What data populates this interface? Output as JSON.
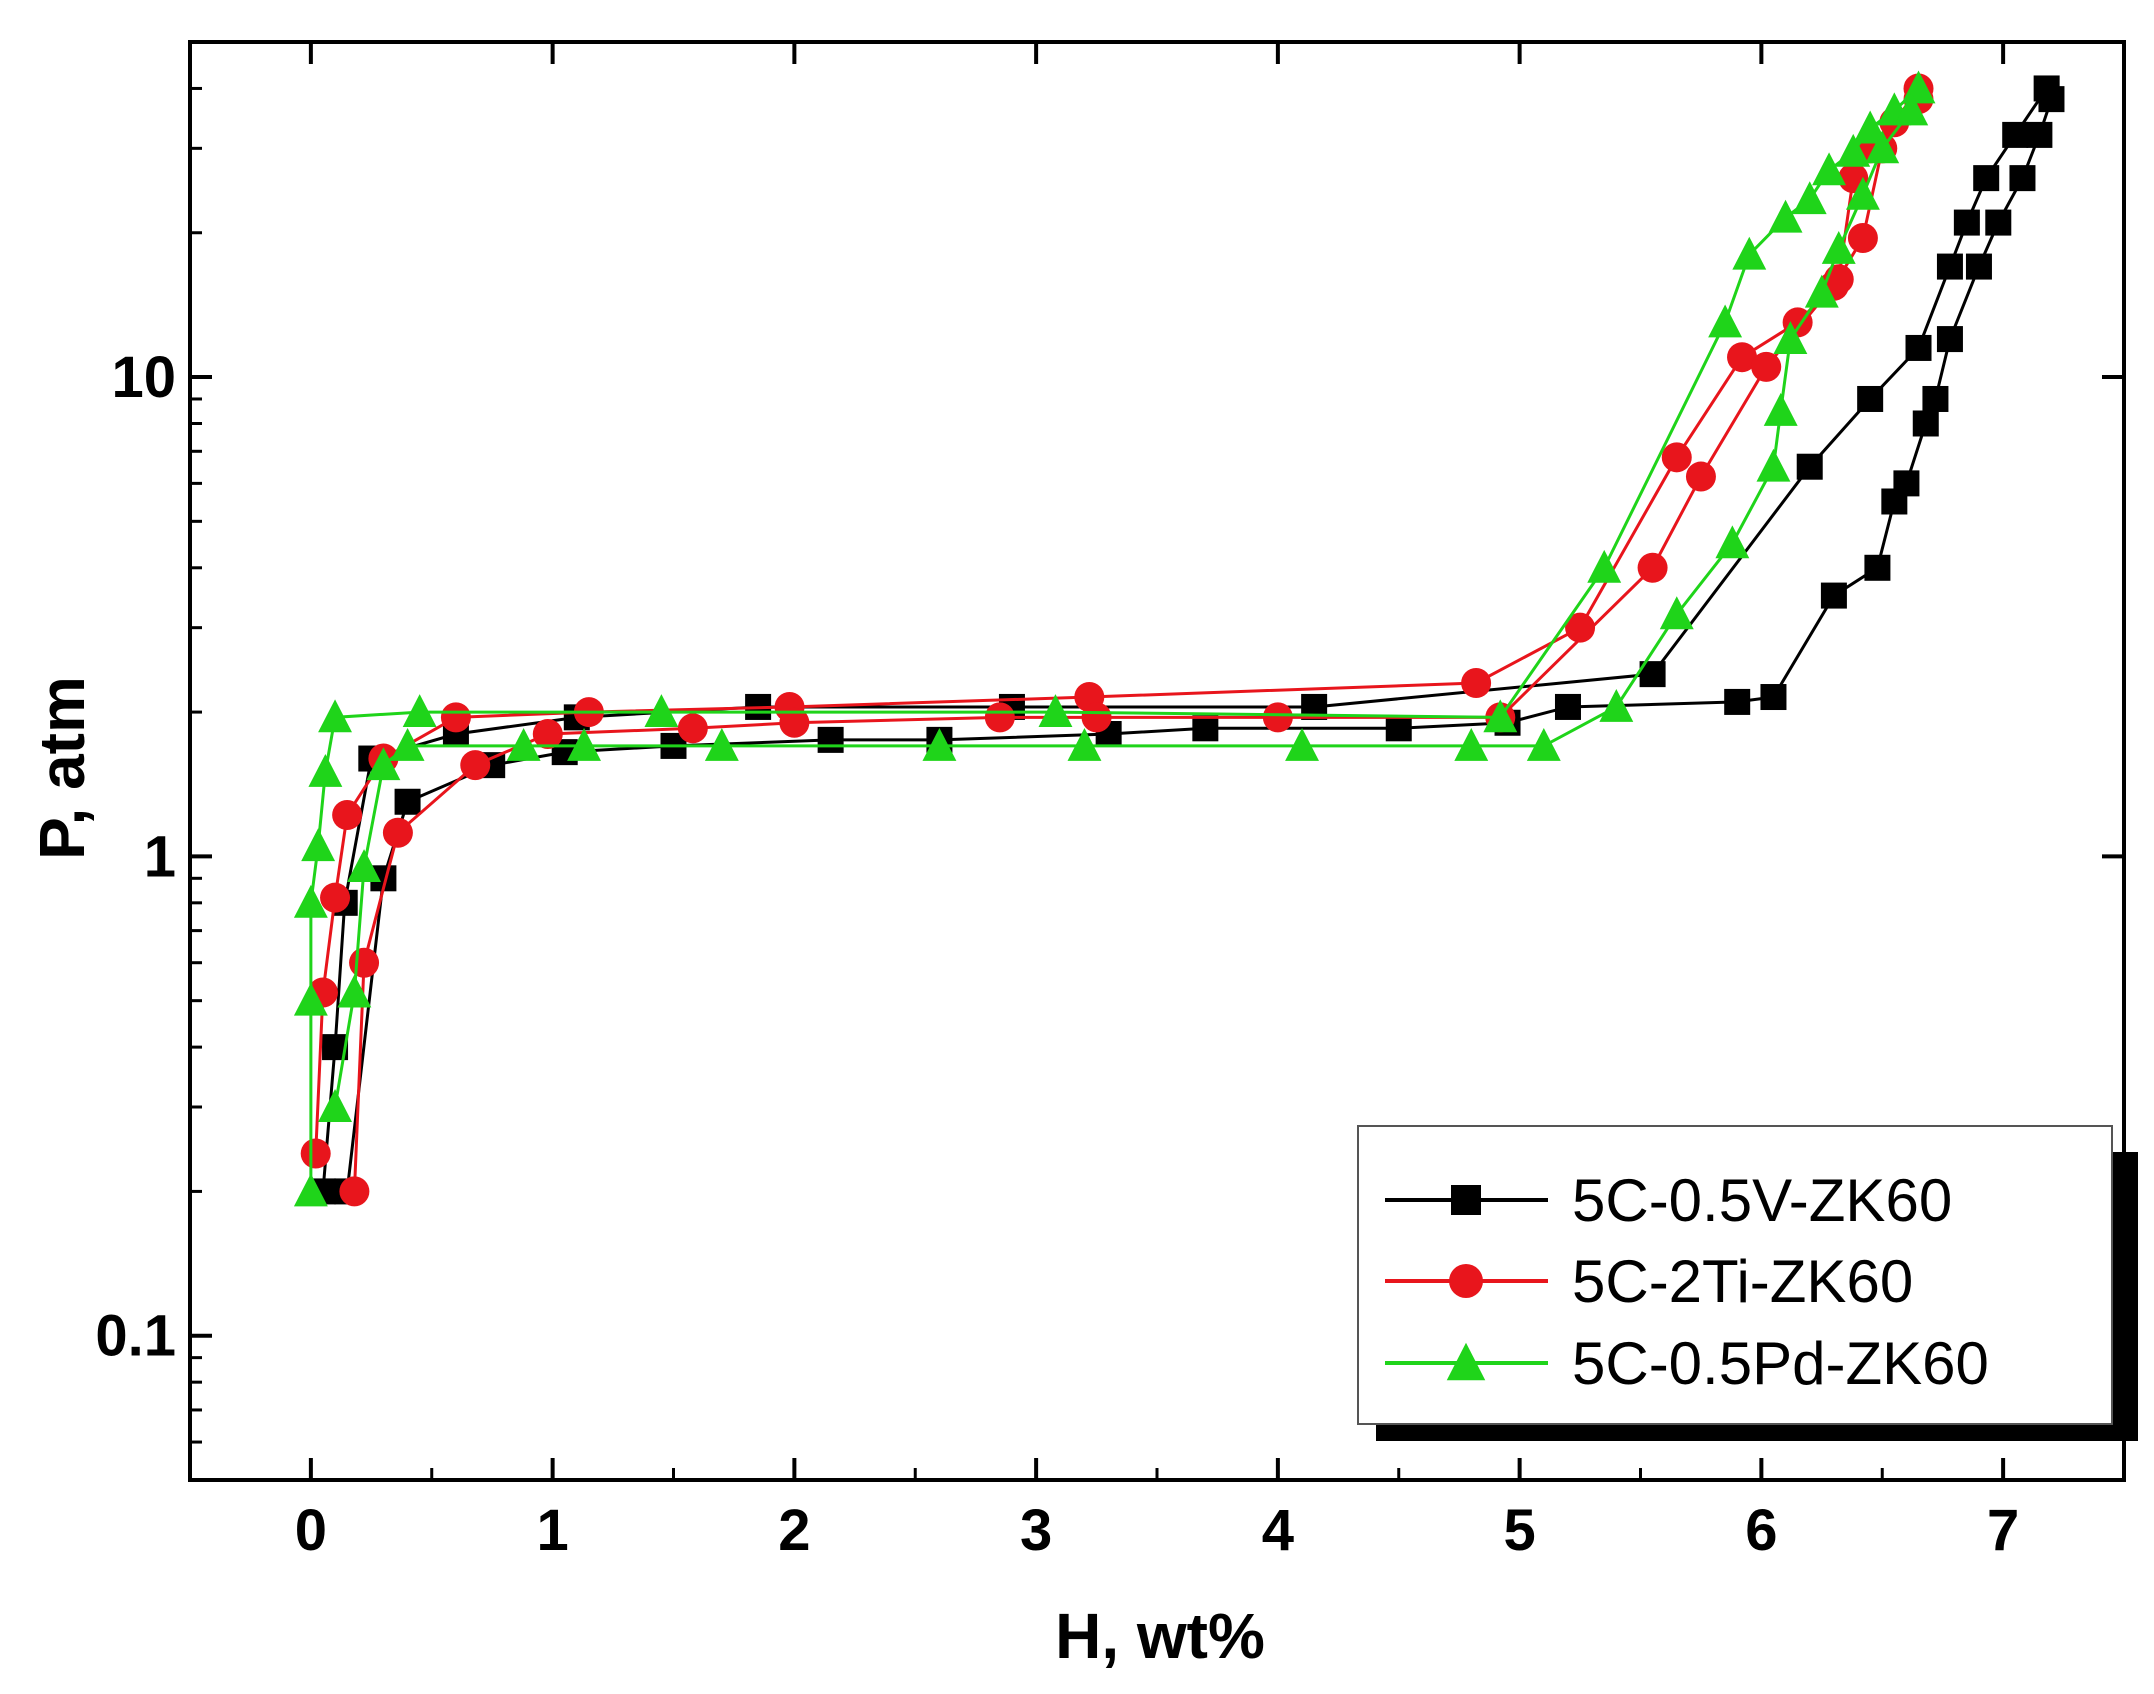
{
  "chart_data": {
    "type": "scatter",
    "title": "",
    "xlabel": "H, wt%",
    "ylabel": "P, atm",
    "xlim": [
      -0.5,
      7.5
    ],
    "ylim": [
      0.05,
      50
    ],
    "yscale": "log",
    "x_ticks": [
      "0",
      "1",
      "2",
      "3",
      "4",
      "5",
      "6",
      "7"
    ],
    "y_ticks": [
      "0.1",
      "1",
      "10"
    ],
    "grid": false,
    "legend": {
      "position": "bottom-right",
      "entries": [
        "5C-0.5V-ZK60",
        "5C-2Ti-ZK60",
        "5C-0.5Pd-ZK60"
      ]
    },
    "series": [
      {
        "name": "5C-0.5V-ZK60",
        "color": "#000000",
        "marker": "square",
        "absorption": [
          [
            0.05,
            0.2
          ],
          [
            0.1,
            0.4
          ],
          [
            0.14,
            0.8
          ],
          [
            0.25,
            1.6
          ],
          [
            0.6,
            1.8
          ],
          [
            1.1,
            1.95
          ],
          [
            1.85,
            2.05
          ],
          [
            2.9,
            2.05
          ],
          [
            4.15,
            2.05
          ],
          [
            5.55,
            2.4
          ],
          [
            6.2,
            6.5
          ],
          [
            6.45,
            9.0
          ],
          [
            6.65,
            11.5
          ],
          [
            6.78,
            17.0
          ],
          [
            6.85,
            21.0
          ],
          [
            6.93,
            26.0
          ],
          [
            7.05,
            32.0
          ],
          [
            7.18,
            40.0
          ]
        ],
        "desorption": [
          [
            0.15,
            0.2
          ],
          [
            0.3,
            0.9
          ],
          [
            0.4,
            1.3
          ],
          [
            0.75,
            1.55
          ],
          [
            1.05,
            1.65
          ],
          [
            1.5,
            1.7
          ],
          [
            2.15,
            1.75
          ],
          [
            2.6,
            1.75
          ],
          [
            3.3,
            1.8
          ],
          [
            3.7,
            1.85
          ],
          [
            4.5,
            1.85
          ],
          [
            4.95,
            1.9
          ],
          [
            5.2,
            2.05
          ],
          [
            5.9,
            2.1
          ],
          [
            6.05,
            2.15
          ],
          [
            6.3,
            3.5
          ],
          [
            6.48,
            4.0
          ],
          [
            6.55,
            5.5
          ],
          [
            6.6,
            6.0
          ],
          [
            6.68,
            8.0
          ],
          [
            6.72,
            9.0
          ],
          [
            6.78,
            12.0
          ],
          [
            6.9,
            17.0
          ],
          [
            6.98,
            21.0
          ],
          [
            7.08,
            26.0
          ],
          [
            7.15,
            32.0
          ],
          [
            7.2,
            38.0
          ]
        ]
      },
      {
        "name": "5C-2Ti-ZK60",
        "color": "#e8151c",
        "marker": "circle",
        "absorption": [
          [
            0.02,
            0.24
          ],
          [
            0.05,
            0.52
          ],
          [
            0.1,
            0.82
          ],
          [
            0.15,
            1.22
          ],
          [
            0.3,
            1.6
          ],
          [
            0.6,
            1.95
          ],
          [
            1.15,
            2.0
          ],
          [
            1.98,
            2.05
          ],
          [
            3.22,
            2.15
          ],
          [
            4.82,
            2.3
          ],
          [
            5.25,
            3.0
          ],
          [
            5.65,
            6.8
          ],
          [
            5.92,
            11.0
          ],
          [
            6.15,
            13.0
          ],
          [
            6.3,
            15.5
          ],
          [
            6.42,
            19.5
          ],
          [
            6.5,
            30.0
          ],
          [
            6.65,
            38.0
          ]
        ],
        "desorption": [
          [
            0.18,
            0.2
          ],
          [
            0.22,
            0.6
          ],
          [
            0.36,
            1.12
          ],
          [
            0.68,
            1.55
          ],
          [
            0.98,
            1.8
          ],
          [
            1.58,
            1.85
          ],
          [
            2.0,
            1.9
          ],
          [
            2.85,
            1.95
          ],
          [
            3.25,
            1.95
          ],
          [
            4.0,
            1.95
          ],
          [
            4.92,
            1.95
          ],
          [
            5.55,
            4.0
          ],
          [
            5.75,
            6.2
          ],
          [
            6.02,
            10.5
          ],
          [
            6.32,
            16.0
          ],
          [
            6.38,
            26.0
          ],
          [
            6.45,
            30.0
          ],
          [
            6.55,
            34.0
          ],
          [
            6.65,
            40.0
          ]
        ]
      },
      {
        "name": "5C-0.5Pd-ZK60",
        "color": "#1fd41a",
        "marker": "triangle",
        "absorption": [
          [
            0.0,
            0.2
          ],
          [
            0.0,
            0.5
          ],
          [
            0.0,
            0.8
          ],
          [
            0.03,
            1.05
          ],
          [
            0.06,
            1.5
          ],
          [
            0.1,
            1.95
          ],
          [
            0.45,
            2.0
          ],
          [
            1.45,
            2.0
          ],
          [
            3.08,
            2.0
          ],
          [
            4.92,
            1.95
          ],
          [
            5.35,
            4.0
          ],
          [
            5.85,
            13.0
          ],
          [
            5.95,
            18.0
          ],
          [
            6.1,
            21.5
          ],
          [
            6.2,
            23.5
          ],
          [
            6.28,
            27.0
          ],
          [
            6.38,
            29.5
          ],
          [
            6.45,
            33.0
          ],
          [
            6.55,
            36.0
          ],
          [
            6.65,
            40.0
          ]
        ],
        "desorption": [
          [
            0.1,
            0.3
          ],
          [
            0.18,
            0.52
          ],
          [
            0.22,
            0.95
          ],
          [
            0.3,
            1.55
          ],
          [
            0.4,
            1.7
          ],
          [
            0.88,
            1.7
          ],
          [
            1.13,
            1.7
          ],
          [
            1.7,
            1.7
          ],
          [
            2.6,
            1.7
          ],
          [
            3.2,
            1.7
          ],
          [
            4.1,
            1.7
          ],
          [
            4.8,
            1.7
          ],
          [
            5.1,
            1.7
          ],
          [
            5.4,
            2.05
          ],
          [
            5.65,
            3.2
          ],
          [
            5.88,
            4.5
          ],
          [
            6.05,
            6.5
          ],
          [
            6.08,
            8.5
          ],
          [
            6.12,
            12.0
          ],
          [
            6.25,
            15.0
          ],
          [
            6.32,
            18.5
          ],
          [
            6.42,
            24.0
          ],
          [
            6.5,
            30.0
          ],
          [
            6.62,
            36.0
          ]
        ]
      }
    ]
  }
}
